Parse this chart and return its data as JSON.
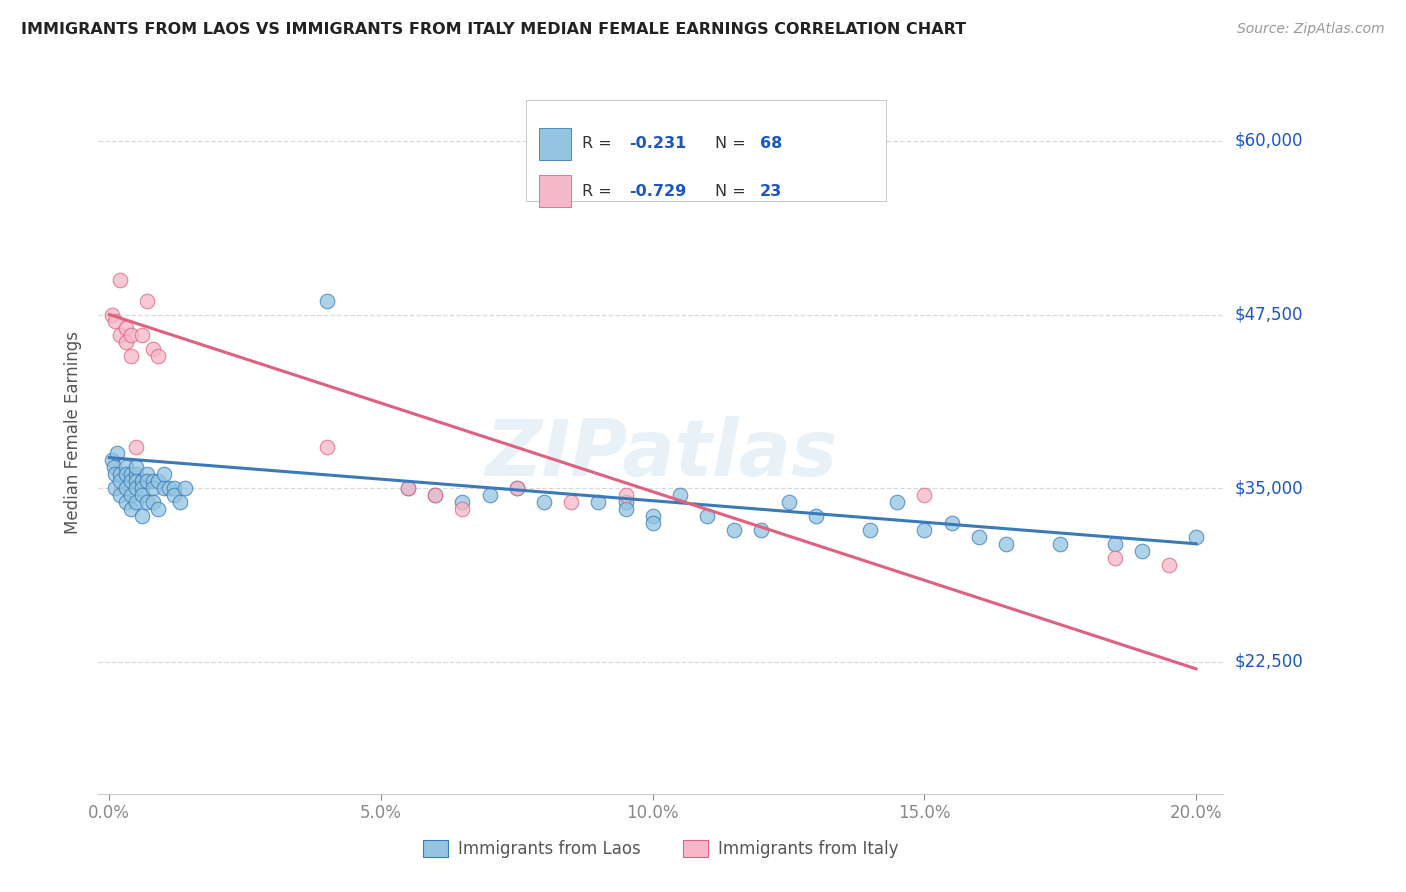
{
  "title": "IMMIGRANTS FROM LAOS VS IMMIGRANTS FROM ITALY MEDIAN FEMALE EARNINGS CORRELATION CHART",
  "source": "Source: ZipAtlas.com",
  "xlabel_ticks": [
    "0.0%",
    "5.0%",
    "10.0%",
    "15.0%",
    "20.0%"
  ],
  "xlabel_tick_vals": [
    0.0,
    0.05,
    0.1,
    0.15,
    0.2
  ],
  "ylabel": "Median Female Earnings",
  "ylabel_ticks": [
    "$22,500",
    "$35,000",
    "$47,500",
    "$60,000"
  ],
  "ylabel_tick_vals": [
    22500,
    35000,
    47500,
    60000
  ],
  "ylim": [
    13000,
    65000
  ],
  "xlim": [
    -0.002,
    0.205
  ],
  "watermark": "ZIPatlas",
  "legend_label_blue": "Immigrants from Laos",
  "legend_label_pink": "Immigrants from Italy",
  "color_blue": "#93c4e0",
  "color_pink": "#f4b8c8",
  "color_line_blue": "#3a7ab8",
  "color_line_pink": "#e06080",
  "color_rval": "#1a56c4",
  "blue_x": [
    0.0005,
    0.0008,
    0.001,
    0.001,
    0.0015,
    0.002,
    0.002,
    0.002,
    0.003,
    0.003,
    0.003,
    0.003,
    0.004,
    0.004,
    0.004,
    0.004,
    0.005,
    0.005,
    0.005,
    0.005,
    0.005,
    0.006,
    0.006,
    0.006,
    0.006,
    0.007,
    0.007,
    0.007,
    0.008,
    0.008,
    0.008,
    0.009,
    0.009,
    0.01,
    0.01,
    0.011,
    0.012,
    0.012,
    0.013,
    0.014,
    0.04,
    0.055,
    0.06,
    0.065,
    0.07,
    0.075,
    0.08,
    0.09,
    0.095,
    0.095,
    0.1,
    0.1,
    0.105,
    0.11,
    0.115,
    0.12,
    0.125,
    0.13,
    0.14,
    0.145,
    0.15,
    0.155,
    0.16,
    0.165,
    0.175,
    0.185,
    0.19,
    0.2
  ],
  "blue_y": [
    37000,
    36500,
    36000,
    35000,
    37500,
    36000,
    35500,
    34500,
    36500,
    36000,
    35000,
    34000,
    36000,
    35500,
    34500,
    33500,
    36000,
    35500,
    35000,
    34000,
    36500,
    35500,
    35000,
    34500,
    33000,
    36000,
    35500,
    34000,
    35500,
    35000,
    34000,
    35500,
    33500,
    35000,
    36000,
    35000,
    35000,
    34500,
    34000,
    35000,
    48500,
    35000,
    34500,
    34000,
    34500,
    35000,
    34000,
    34000,
    34000,
    33500,
    33000,
    32500,
    34500,
    33000,
    32000,
    32000,
    34000,
    33000,
    32000,
    34000,
    32000,
    32500,
    31500,
    31000,
    31000,
    31000,
    30500,
    31500
  ],
  "pink_x": [
    0.0005,
    0.001,
    0.002,
    0.002,
    0.003,
    0.003,
    0.004,
    0.004,
    0.005,
    0.006,
    0.007,
    0.008,
    0.009,
    0.04,
    0.055,
    0.06,
    0.065,
    0.075,
    0.085,
    0.095,
    0.15,
    0.185,
    0.195
  ],
  "pink_y": [
    47500,
    47000,
    46000,
    50000,
    46500,
    45500,
    46000,
    44500,
    38000,
    46000,
    48500,
    45000,
    44500,
    38000,
    35000,
    34500,
    33500,
    35000,
    34000,
    34500,
    34500,
    30000,
    29500
  ],
  "blue_line_x": [
    0.0,
    0.2
  ],
  "blue_line_y": [
    37200,
    31000
  ],
  "pink_line_x": [
    0.0,
    0.2
  ],
  "pink_line_y": [
    47500,
    22000
  ]
}
